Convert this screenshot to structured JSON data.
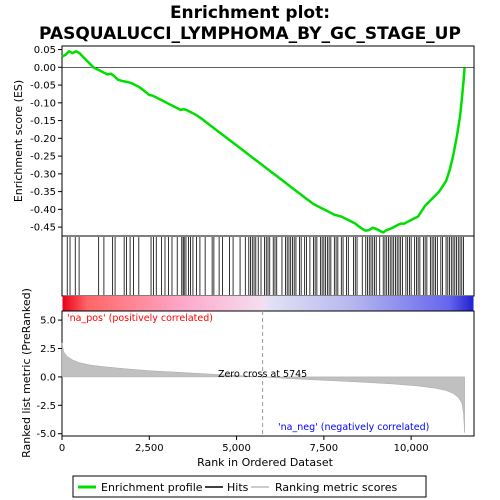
{
  "chart_data": {
    "type": "line",
    "title_line1": "Enrichment plot:",
    "title_line2": "PASQUALUCCI_LYMPHOMA_BY_GC_STAGE_UP",
    "top_panel": {
      "ylabel": "Enrichment score (ES)",
      "ylim": [
        -0.475,
        0.06
      ],
      "yticks": [
        0.05,
        0.0,
        -0.05,
        -0.1,
        -0.15,
        -0.2,
        -0.25,
        -0.3,
        -0.35,
        -0.4,
        -0.45
      ],
      "ytick_labels": [
        "0.05",
        "0.00",
        "-0.05",
        "-0.10",
        "-0.15",
        "-0.20",
        "-0.25",
        "-0.30",
        "-0.35",
        "-0.40",
        "-0.45"
      ],
      "series": [
        {
          "name": "Enrichment profile",
          "color": "#00dd00",
          "x": [
            0,
            100,
            200,
            300,
            400,
            500,
            600,
            700,
            800,
            900,
            1000,
            1100,
            1200,
            1300,
            1400,
            1500,
            1600,
            1700,
            1800,
            1900,
            2000,
            2100,
            2200,
            2300,
            2400,
            2500,
            2600,
            2700,
            2800,
            2900,
            3000,
            3100,
            3200,
            3300,
            3400,
            3500,
            3600,
            3700,
            3800,
            3900,
            4000,
            4200,
            4400,
            4600,
            4800,
            5000,
            5200,
            5400,
            5600,
            5800,
            6000,
            6200,
            6400,
            6600,
            6800,
            7000,
            7200,
            7400,
            7600,
            7800,
            8000,
            8200,
            8400,
            8500,
            8600,
            8700,
            8800,
            8900,
            9000,
            9100,
            9200,
            9300,
            9400,
            9500,
            9600,
            9700,
            9800,
            9900,
            10000,
            10100,
            10200,
            10300,
            10400,
            10500,
            10600,
            10700,
            10800,
            10900,
            11000,
            11100,
            11200,
            11300,
            11400,
            11450,
            11500,
            11530
          ],
          "y": [
            0.03,
            0.035,
            0.045,
            0.04,
            0.045,
            0.04,
            0.03,
            0.02,
            0.01,
            0.0,
            -0.005,
            -0.01,
            -0.015,
            -0.02,
            -0.018,
            -0.025,
            -0.035,
            -0.038,
            -0.04,
            -0.042,
            -0.045,
            -0.05,
            -0.055,
            -0.062,
            -0.07,
            -0.078,
            -0.08,
            -0.085,
            -0.09,
            -0.095,
            -0.1,
            -0.105,
            -0.11,
            -0.115,
            -0.12,
            -0.118,
            -0.122,
            -0.127,
            -0.132,
            -0.138,
            -0.145,
            -0.16,
            -0.175,
            -0.19,
            -0.205,
            -0.22,
            -0.235,
            -0.25,
            -0.265,
            -0.28,
            -0.295,
            -0.31,
            -0.325,
            -0.34,
            -0.355,
            -0.37,
            -0.385,
            -0.395,
            -0.405,
            -0.415,
            -0.42,
            -0.43,
            -0.44,
            -0.448,
            -0.455,
            -0.46,
            -0.458,
            -0.452,
            -0.455,
            -0.46,
            -0.465,
            -0.458,
            -0.455,
            -0.45,
            -0.445,
            -0.44,
            -0.44,
            -0.435,
            -0.43,
            -0.425,
            -0.42,
            -0.405,
            -0.39,
            -0.38,
            -0.37,
            -0.36,
            -0.35,
            -0.335,
            -0.32,
            -0.29,
            -0.25,
            -0.2,
            -0.14,
            -0.09,
            -0.04,
            0.0
          ]
        }
      ]
    },
    "hits_panel": {
      "hits_x": [
        150,
        230,
        380,
        490,
        1050,
        1200,
        1450,
        1520,
        1780,
        1850,
        1950,
        2050,
        2200,
        2550,
        2620,
        2700,
        2850,
        2950,
        3050,
        3150,
        3300,
        3430,
        3470,
        3500,
        3550,
        3620,
        3680,
        3750,
        3850,
        3950,
        4100,
        4300,
        4350,
        4500,
        4600,
        4800,
        4900,
        5100,
        5250,
        5350,
        5400,
        5450,
        5500,
        5550,
        5620,
        5700,
        5800,
        5850,
        5900,
        5950,
        6050,
        6100,
        6150,
        6300,
        6400,
        6450,
        6500,
        6550,
        6600,
        6650,
        6700,
        6800,
        6850,
        6950,
        7000,
        7100,
        7200,
        7250,
        7300,
        7400,
        7450,
        7500,
        7550,
        7600,
        7650,
        7700,
        7800,
        7850,
        7900,
        8000,
        8050,
        8150,
        8200,
        8350,
        8400,
        8450,
        8600,
        8700,
        8750,
        8800,
        8850,
        8900,
        8950,
        9000,
        9100,
        9200,
        9250,
        9300,
        9350,
        9400,
        9450,
        9500,
        9550,
        9600,
        9650,
        9700,
        9750,
        9850,
        9900,
        9950,
        10000,
        10100,
        10150,
        10200,
        10250,
        10350,
        10400,
        10450,
        10550,
        10600,
        10650,
        10700,
        10750,
        10850,
        10900,
        11000,
        11050,
        11100,
        11150,
        11200,
        11250,
        11300,
        11350,
        11400,
        11450,
        11500
      ]
    },
    "bottom_panel": {
      "ylabel": "Ranked list metric (PreRanked)",
      "xlabel": "Rank in Ordered Dataset",
      "ylim": [
        -5.2,
        5.8
      ],
      "yticks": [
        5.0,
        2.5,
        0.0,
        -2.5,
        -5.0
      ],
      "ytick_labels": [
        "5.0",
        "2.5",
        "0.0",
        "-2.5",
        "-5.0"
      ],
      "xlim": [
        0,
        11800
      ],
      "xticks": [
        0,
        2500,
        5000,
        7500,
        10000
      ],
      "xtick_labels": [
        "0",
        "2,500",
        "5,000",
        "7,500",
        "10,000"
      ],
      "metric_x": [
        0,
        50,
        150,
        300,
        500,
        800,
        1200,
        1800,
        2500,
        3500,
        4500,
        5745,
        6500,
        7500,
        8500,
        9500,
        10200,
        10700,
        11000,
        11200,
        11350,
        11450,
        11500,
        11530
      ],
      "metric_y": [
        3.0,
        2.2,
        1.8,
        1.5,
        1.25,
        1.05,
        0.9,
        0.72,
        0.55,
        0.38,
        0.2,
        0.0,
        -0.15,
        -0.3,
        -0.45,
        -0.62,
        -0.8,
        -1.0,
        -1.2,
        -1.45,
        -1.8,
        -2.3,
        -3.2,
        -4.9
      ],
      "zero_cross_label": "Zero cross at 5745",
      "zero_cross_x": 5745,
      "pos_label": "'na_pos' (positively correlated)",
      "neg_label": "'na_neg' (negatively correlated)",
      "pos_color": "#ff0000",
      "neg_color": "#0000ff"
    },
    "legend": {
      "items": [
        {
          "label": "Enrichment profile",
          "color": "#00dd00",
          "kind": "line-thick"
        },
        {
          "label": "Hits",
          "color": "#000000",
          "kind": "line"
        },
        {
          "label": "Ranking metric scores",
          "color": "#bbbbbb",
          "kind": "line"
        }
      ]
    }
  }
}
